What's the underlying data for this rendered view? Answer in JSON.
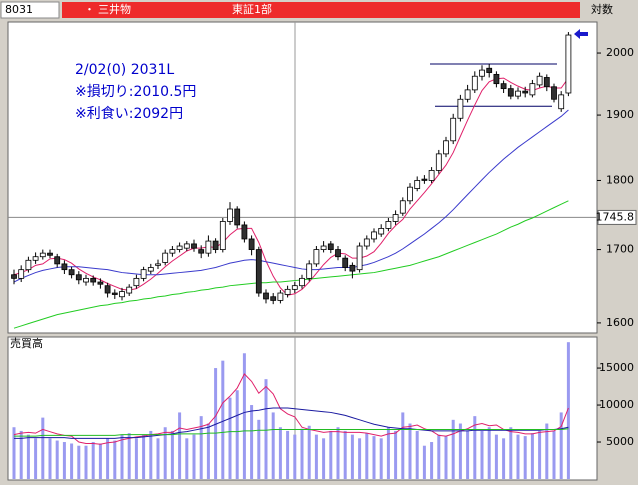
{
  "header": {
    "code": "8031",
    "bullet": "・",
    "name": "三井物",
    "market": "東証1部",
    "scale_mode": "対数"
  },
  "chart_data": [
    {
      "type": "candlestick",
      "log_scale": true,
      "ylim": [
        1588,
        2052
      ],
      "yticks": [
        1600,
        1700,
        1800,
        1900,
        2000
      ],
      "annotations": [
        "2/02(0) 2031L",
        "※損切り:2010.5円",
        "※利食い:2092円"
      ],
      "crosshair": 1745.8,
      "hlines": [
        1982,
        1914
      ],
      "hline_color": "#000066",
      "up_color": "#ffffff",
      "down_color": "#303030",
      "open": [
        1665,
        1660,
        1672,
        1685,
        1690,
        1695,
        1690,
        1680,
        1672,
        1665,
        1655,
        1660,
        1655,
        1650,
        1640,
        1635,
        1640,
        1650,
        1660,
        1670,
        1678,
        1682,
        1695,
        1700,
        1702,
        1708,
        1700,
        1695,
        1712,
        1700,
        1740,
        1758,
        1735,
        1715,
        1700,
        1640,
        1635,
        1630,
        1638,
        1645,
        1650,
        1660,
        1680,
        1700,
        1708,
        1700,
        1688,
        1678,
        1672,
        1705,
        1715,
        1722,
        1730,
        1740,
        1752,
        1770,
        1788,
        1802,
        1800,
        1815,
        1840,
        1860,
        1895,
        1925,
        1940,
        1962,
        1975,
        1965,
        1950,
        1942,
        1930,
        1938,
        1932,
        1948,
        1960,
        1945,
        1910,
        1935
      ],
      "high": [
        1672,
        1678,
        1690,
        1696,
        1700,
        1700,
        1694,
        1685,
        1676,
        1670,
        1665,
        1664,
        1660,
        1654,
        1645,
        1647,
        1652,
        1665,
        1676,
        1680,
        1686,
        1700,
        1705,
        1710,
        1712,
        1714,
        1706,
        1720,
        1716,
        1745,
        1768,
        1762,
        1740,
        1720,
        1704,
        1645,
        1640,
        1644,
        1650,
        1655,
        1665,
        1685,
        1705,
        1712,
        1712,
        1705,
        1692,
        1682,
        1710,
        1720,
        1730,
        1736,
        1745,
        1756,
        1775,
        1796,
        1806,
        1808,
        1820,
        1846,
        1866,
        1902,
        1932,
        1948,
        1970,
        1980,
        1982,
        1970,
        1955,
        1948,
        1944,
        1945,
        1956,
        1968,
        1965,
        1950,
        1938,
        2035
      ],
      "low": [
        1652,
        1655,
        1668,
        1680,
        1686,
        1688,
        1675,
        1666,
        1660,
        1652,
        1650,
        1650,
        1646,
        1634,
        1632,
        1630,
        1636,
        1646,
        1656,
        1666,
        1673,
        1678,
        1690,
        1696,
        1698,
        1697,
        1688,
        1690,
        1695,
        1696,
        1735,
        1730,
        1710,
        1692,
        1635,
        1626,
        1625,
        1626,
        1634,
        1640,
        1646,
        1656,
        1676,
        1696,
        1695,
        1685,
        1670,
        1660,
        1668,
        1700,
        1710,
        1718,
        1726,
        1735,
        1748,
        1765,
        1784,
        1795,
        1796,
        1810,
        1835,
        1855,
        1890,
        1920,
        1935,
        1955,
        1960,
        1944,
        1935,
        1925,
        1925,
        1928,
        1928,
        1944,
        1938,
        1920,
        1905,
        1930
      ],
      "close": [
        1660,
        1672,
        1685,
        1690,
        1695,
        1692,
        1680,
        1672,
        1665,
        1658,
        1660,
        1655,
        1652,
        1640,
        1638,
        1642,
        1648,
        1660,
        1672,
        1675,
        1680,
        1695,
        1700,
        1705,
        1708,
        1702,
        1695,
        1712,
        1700,
        1740,
        1758,
        1735,
        1715,
        1700,
        1640,
        1632,
        1630,
        1640,
        1645,
        1650,
        1660,
        1680,
        1700,
        1705,
        1700,
        1690,
        1675,
        1670,
        1705,
        1715,
        1725,
        1730,
        1740,
        1750,
        1770,
        1790,
        1800,
        1800,
        1815,
        1840,
        1860,
        1895,
        1925,
        1940,
        1962,
        1972,
        1968,
        1950,
        1942,
        1930,
        1938,
        1935,
        1950,
        1962,
        1945,
        1925,
        1932,
        2030
      ],
      "series": [
        {
          "color": "#e0206a",
          "values": [
            1665,
            1668,
            1672,
            1678,
            1680,
            1687,
            1688,
            1686,
            1681,
            1673,
            1667,
            1662,
            1658,
            1653,
            1649,
            1645,
            1644,
            1646,
            1652,
            1659,
            1667,
            1676,
            1684,
            1691,
            1698,
            1702,
            1702,
            1704,
            1703,
            1710,
            1721,
            1729,
            1730,
            1730,
            1710,
            1684,
            1663,
            1647,
            1637,
            1639,
            1645,
            1655,
            1667,
            1679,
            1689,
            1695,
            1694,
            1688,
            1688,
            1691,
            1697,
            1709,
            1723,
            1734,
            1743,
            1758,
            1770,
            1782,
            1795,
            1809,
            1823,
            1842,
            1867,
            1892,
            1916,
            1939,
            1953,
            1958,
            1959,
            1952,
            1946,
            1941,
            1939,
            1943,
            1946,
            1943,
            1943,
            1959
          ]
        },
        {
          "color": "#3a3acc",
          "values": [
            1655,
            1660,
            1664,
            1668,
            1671,
            1673,
            1675,
            1676,
            1676,
            1676,
            1675,
            1674,
            1673,
            1672,
            1670,
            1668,
            1667,
            1666,
            1665,
            1665,
            1665,
            1666,
            1667,
            1668,
            1669,
            1670,
            1671,
            1673,
            1675,
            1678,
            1681,
            1683,
            1685,
            1686,
            1685,
            1683,
            1681,
            1679,
            1677,
            1675,
            1673,
            1672,
            1672,
            1673,
            1674,
            1675,
            1675,
            1675,
            1677,
            1679,
            1682,
            1686,
            1690,
            1695,
            1701,
            1708,
            1715,
            1722,
            1730,
            1738,
            1747,
            1757,
            1768,
            1779,
            1790,
            1801,
            1812,
            1822,
            1832,
            1841,
            1850,
            1858,
            1866,
            1874,
            1882,
            1890,
            1898,
            1908
          ]
        },
        {
          "color": "#22cc22",
          "values": [
            1593,
            1596,
            1599,
            1602,
            1605,
            1608,
            1611,
            1613,
            1615,
            1617,
            1619,
            1621,
            1623,
            1624,
            1626,
            1627,
            1629,
            1630,
            1632,
            1633,
            1635,
            1636,
            1638,
            1639,
            1641,
            1642,
            1644,
            1645,
            1647,
            1648,
            1650,
            1651,
            1652,
            1653,
            1654,
            1654,
            1655,
            1655,
            1656,
            1657,
            1658,
            1659,
            1660,
            1661,
            1662,
            1663,
            1664,
            1665,
            1666,
            1667,
            1668,
            1670,
            1672,
            1674,
            1676,
            1678,
            1681,
            1684,
            1687,
            1690,
            1694,
            1698,
            1702,
            1706,
            1710,
            1714,
            1718,
            1722,
            1727,
            1732,
            1736,
            1741,
            1745,
            1750,
            1755,
            1760,
            1765,
            1770
          ]
        }
      ]
    },
    {
      "type": "bar",
      "label": "売買高",
      "ylim": [
        0,
        19200
      ],
      "yticks": [
        5000,
        10000,
        15000
      ],
      "color": "#9a9af0",
      "values": [
        7000,
        6500,
        6000,
        5500,
        8300,
        5500,
        5200,
        5000,
        4800,
        4500,
        4500,
        5000,
        4800,
        5500,
        5200,
        6000,
        6200,
        5500,
        6000,
        6500,
        5500,
        7000,
        6500,
        9000,
        5500,
        6000,
        8500,
        7500,
        15000,
        16000,
        11000,
        12000,
        17000,
        10000,
        8000,
        13500,
        9000,
        7000,
        6500,
        6000,
        6800,
        7200,
        6000,
        5500,
        6500,
        7000,
        6500,
        6000,
        5500,
        6200,
        5800,
        5500,
        7000,
        6500,
        9000,
        7500,
        6500,
        4500,
        5000,
        6000,
        5800,
        8000,
        7500,
        6500,
        8500,
        6500,
        7000,
        6000,
        5500,
        7000,
        6000,
        5800,
        6200,
        6500,
        7500,
        6500,
        9000,
        18500
      ],
      "series": [
        {
          "color": "#e0206a",
          "values": [
            6000,
            6200,
            6300,
            6200,
            6700,
            6400,
            6100,
            5900,
            5800,
            5000,
            4800,
            4800,
            4700,
            4900,
            5000,
            5300,
            5500,
            5700,
            5800,
            6000,
            6100,
            6300,
            6300,
            6900,
            6700,
            6900,
            7100,
            7400,
            8500,
            10300,
            11200,
            12300,
            14200,
            13200,
            11600,
            12500,
            11500,
            9500,
            8800,
            8400,
            7000,
            6700,
            6500,
            6300,
            6400,
            6400,
            6300,
            6300,
            6300,
            6200,
            6000,
            5800,
            6100,
            6200,
            7000,
            7100,
            7300,
            6800,
            6500,
            5900,
            5800,
            6100,
            6500,
            6800,
            7300,
            7500,
            7200,
            7300,
            6700,
            6400,
            6300,
            6100,
            6100,
            6300,
            6400,
            6500,
            7100,
            9600
          ]
        },
        {
          "color": "#1a1aa0",
          "values": [
            5500,
            5500,
            5600,
            5600,
            5600,
            5600,
            5600,
            5600,
            5500,
            5500,
            5500,
            5500,
            5500,
            5500,
            5500,
            5600,
            5600,
            5600,
            5700,
            5800,
            5900,
            6000,
            6100,
            6300,
            6400,
            6600,
            6800,
            7000,
            7400,
            7800,
            8200,
            8600,
            9000,
            9200,
            9300,
            9500,
            9600,
            9600,
            9600,
            9500,
            9400,
            9300,
            9200,
            9100,
            9000,
            8800,
            8600,
            8300,
            8000,
            7700,
            7400,
            7200,
            7000,
            6900,
            6800,
            6800,
            6700,
            6600,
            6500,
            6500,
            6500,
            6500,
            6500,
            6500,
            6600,
            6600,
            6600,
            6600,
            6600,
            6600,
            6600,
            6600,
            6600,
            6600,
            6700,
            6700,
            6800,
            7000
          ]
        },
        {
          "color": "#22bb22",
          "values": [
            5800,
            5800,
            5800,
            5800,
            5900,
            5900,
            5900,
            5900,
            5900,
            5900,
            5900,
            5900,
            5900,
            5900,
            5900,
            6000,
            6000,
            6000,
            6000,
            6000,
            6000,
            6000,
            6000,
            6100,
            6100,
            6100,
            6100,
            6200,
            6200,
            6300,
            6400,
            6400,
            6500,
            6500,
            6600,
            6600,
            6700,
            6700,
            6700,
            6700,
            6700,
            6700,
            6700,
            6700,
            6700,
            6700,
            6700,
            6700,
            6700,
            6700,
            6700,
            6700,
            6700,
            6700,
            6700,
            6700,
            6700,
            6700,
            6700,
            6700,
            6700,
            6700,
            6700,
            6700,
            6700,
            6700,
            6700,
            6700,
            6700,
            6700,
            6700,
            6700,
            6700,
            6700,
            6700,
            6700,
            6700,
            6800
          ]
        }
      ]
    }
  ]
}
